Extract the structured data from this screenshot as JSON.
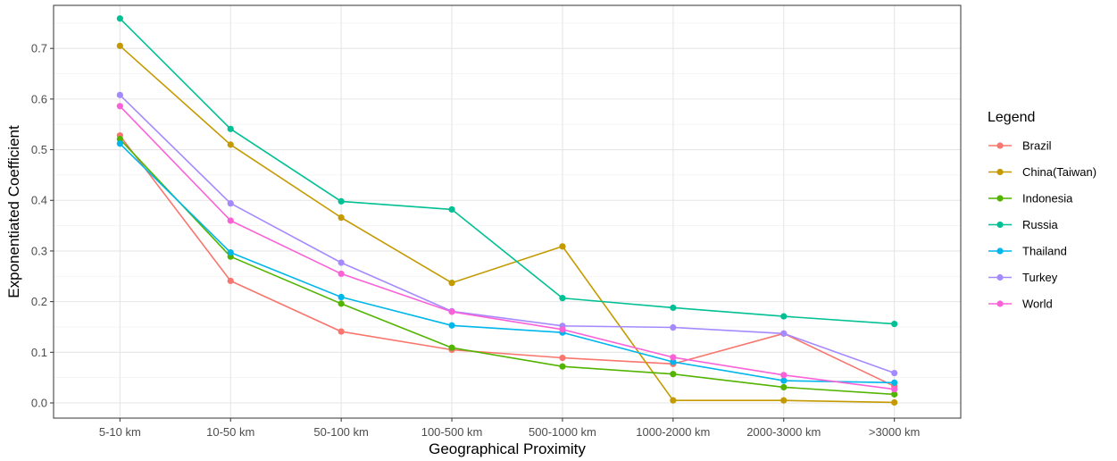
{
  "chart_data": {
    "type": "line",
    "xlabel": "Geographical Proximity",
    "ylabel": "Exponentiated Coefficient",
    "categories": [
      "5-10 km",
      "10-50 km",
      "50-100 km",
      "100-500 km",
      "500-1000 km",
      "1000-2000 km",
      "2000-3000 km",
      ">3000 km"
    ],
    "ylim": [
      -0.03,
      0.785
    ],
    "yticks": [
      "0.0",
      "0.1",
      "0.2",
      "0.3",
      "0.4",
      "0.5",
      "0.6",
      "0.7"
    ],
    "grid": true,
    "legend": {
      "title": "Legend",
      "position": "right"
    },
    "series": [
      {
        "name": "Brazil",
        "color": "#F8766D",
        "values": [
          0.528,
          0.241,
          0.141,
          0.105,
          0.089,
          0.077,
          0.137,
          0.033
        ]
      },
      {
        "name": "China(Taiwan)",
        "color": "#C49A00",
        "values": [
          0.705,
          0.51,
          0.366,
          0.237,
          0.309,
          0.005,
          0.005,
          0.001
        ]
      },
      {
        "name": "Indonesia",
        "color": "#53B400",
        "values": [
          0.521,
          0.289,
          0.196,
          0.109,
          0.072,
          0.057,
          0.031,
          0.017
        ]
      },
      {
        "name": "Russia",
        "color": "#00C094",
        "values": [
          0.759,
          0.541,
          0.398,
          0.382,
          0.207,
          0.188,
          0.171,
          0.156
        ]
      },
      {
        "name": "Thailand",
        "color": "#00B6EB",
        "values": [
          0.512,
          0.297,
          0.209,
          0.153,
          0.139,
          0.081,
          0.044,
          0.04
        ]
      },
      {
        "name": "Turkey",
        "color": "#A58AFF",
        "values": [
          0.608,
          0.394,
          0.277,
          0.181,
          0.152,
          0.149,
          0.137,
          0.059
        ]
      },
      {
        "name": "World",
        "color": "#FB61D7",
        "values": [
          0.586,
          0.36,
          0.255,
          0.18,
          0.145,
          0.09,
          0.055,
          0.027
        ]
      }
    ]
  }
}
